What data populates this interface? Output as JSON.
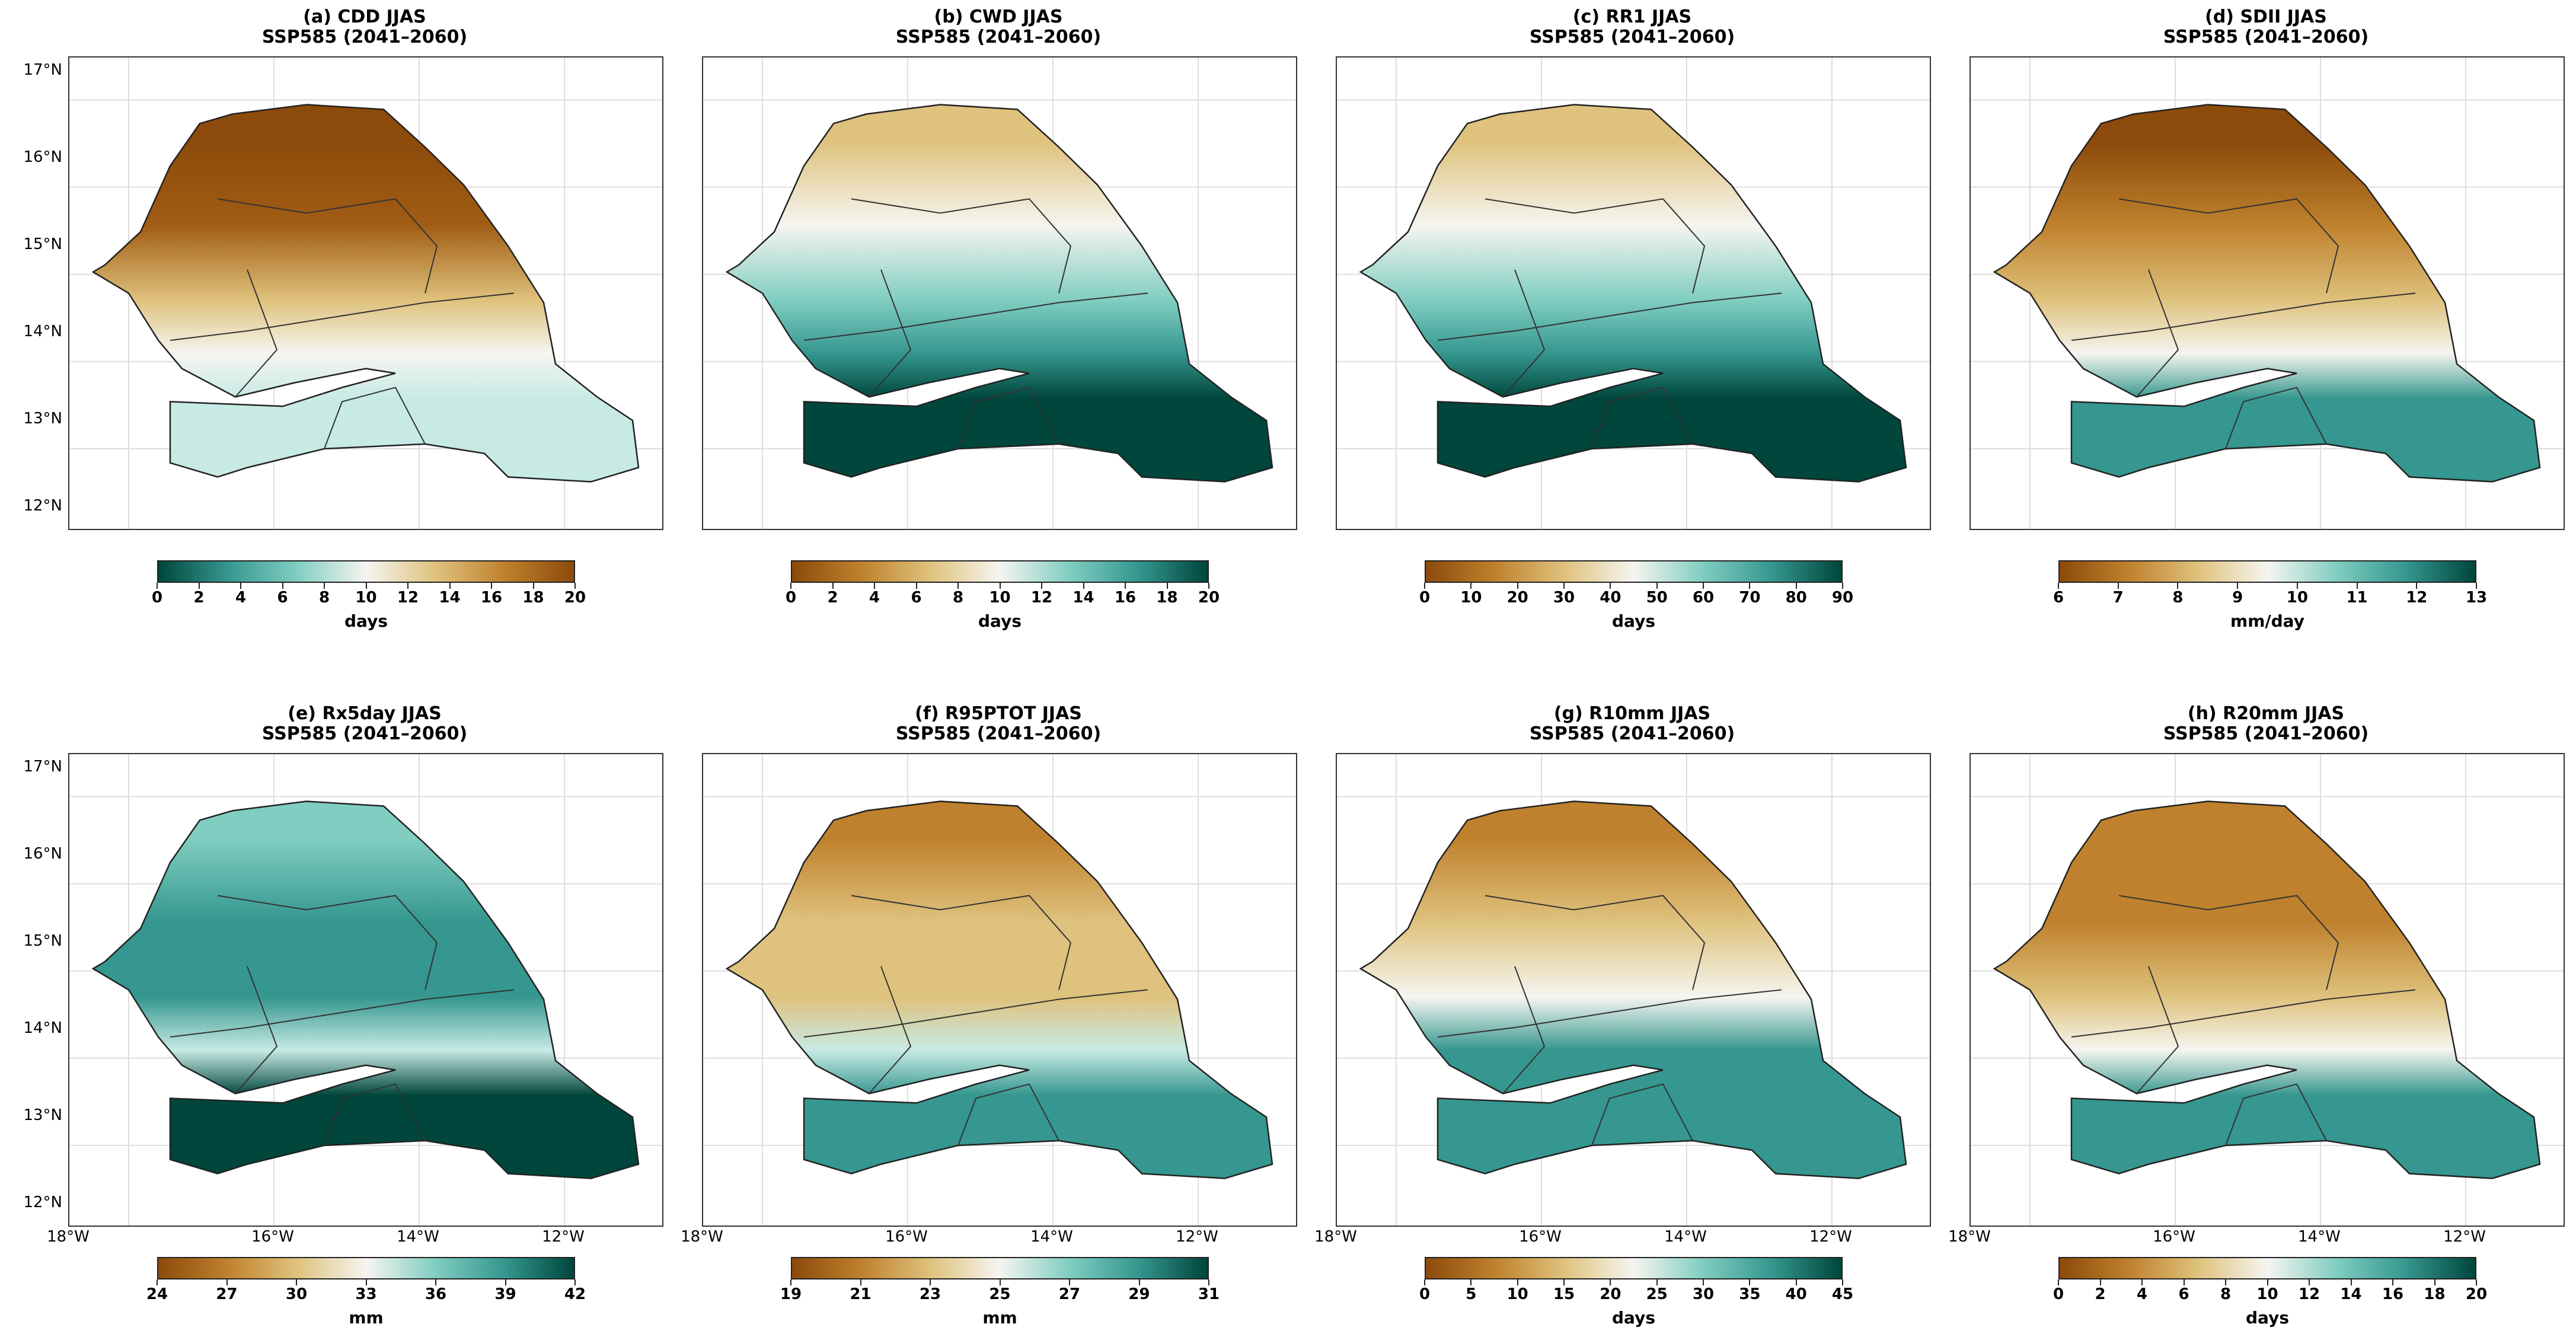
{
  "figure": {
    "panels": [
      {
        "id": "a",
        "title": "(a) CDD JJAS",
        "subtitle": "SSP585 (2041–2060)",
        "unit": "days",
        "ticks": [
          "0",
          "2",
          "4",
          "6",
          "8",
          "10",
          "12",
          "14",
          "16",
          "18",
          "20"
        ],
        "colormap": "teal-to-brown"
      },
      {
        "id": "b",
        "title": "(b) CWD JJAS",
        "subtitle": "SSP585 (2041–2060)",
        "unit": "days",
        "ticks": [
          "0",
          "2",
          "4",
          "6",
          "8",
          "10",
          "12",
          "14",
          "16",
          "18",
          "20"
        ],
        "colormap": "brown-to-teal"
      },
      {
        "id": "c",
        "title": "(c) RR1 JJAS",
        "subtitle": "SSP585 (2041–2060)",
        "unit": "days",
        "ticks": [
          "0",
          "10",
          "20",
          "30",
          "40",
          "50",
          "60",
          "70",
          "80",
          "90"
        ],
        "colormap": "brown-to-teal"
      },
      {
        "id": "d",
        "title": "(d) SDII JJAS",
        "subtitle": "SSP585 (2041–2060)",
        "unit": "mm/day",
        "ticks": [
          "6",
          "7",
          "8",
          "9",
          "10",
          "11",
          "12",
          "13"
        ],
        "colormap": "brown-to-teal"
      },
      {
        "id": "e",
        "title": "(e) Rx5day JJAS",
        "subtitle": "SSP585 (2041–2060)",
        "unit": "mm",
        "ticks": [
          "24",
          "27",
          "30",
          "33",
          "36",
          "39",
          "42"
        ],
        "colormap": "brown-to-teal"
      },
      {
        "id": "f",
        "title": "(f) R95PTOT JJAS",
        "subtitle": "SSP585 (2041–2060)",
        "unit": "mm",
        "ticks": [
          "19",
          "21",
          "23",
          "25",
          "27",
          "29",
          "31"
        ],
        "colormap": "brown-to-teal"
      },
      {
        "id": "g",
        "title": "(g) R10mm JJAS",
        "subtitle": "SSP585 (2041–2060)",
        "unit": "days",
        "ticks": [
          "0",
          "5",
          "10",
          "15",
          "20",
          "25",
          "30",
          "35",
          "40",
          "45"
        ],
        "colormap": "brown-to-teal"
      },
      {
        "id": "h",
        "title": "(h) R20mm JJAS",
        "subtitle": "SSP585 (2041–2060)",
        "unit": "days",
        "ticks": [
          "0",
          "2",
          "4",
          "6",
          "8",
          "10",
          "12",
          "14",
          "16",
          "18",
          "20"
        ],
        "colormap": "brown-to-teal"
      }
    ],
    "lat_labels": [
      "17°N",
      "16°N",
      "15°N",
      "14°N",
      "13°N",
      "12°N"
    ],
    "lon_labels": [
      "18°W",
      "16°W",
      "14°W",
      "12°W"
    ],
    "colors": {
      "brown": "#8c4a0b",
      "tan": "#dfc27d",
      "white": "#f5f5f0",
      "teal": "#35978f",
      "darkteal": "#00463c"
    }
  }
}
